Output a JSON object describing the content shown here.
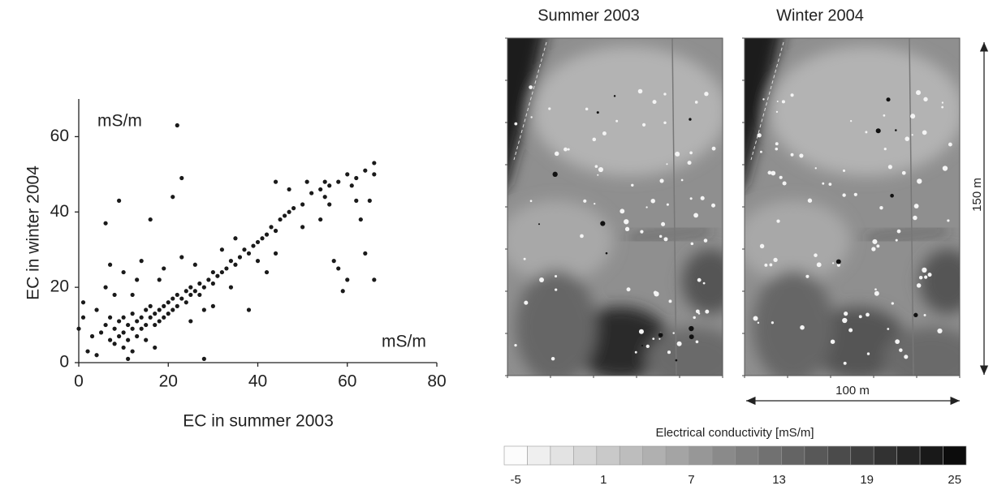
{
  "chart_data": [
    {
      "type": "scatter",
      "x_label": "EC in summer 2003",
      "y_label": "EC in winter 2004",
      "x_unit": "mS/m",
      "y_unit": "mS/m",
      "color": "#1a1a1a",
      "xlim": [
        0,
        80
      ],
      "xticks": [
        0,
        20,
        40,
        60,
        80
      ],
      "ylim": [
        0,
        70
      ],
      "yticks": [
        0,
        20,
        40,
        60
      ],
      "x": [
        5,
        6,
        7,
        7,
        8,
        8,
        9,
        9,
        10,
        10,
        10,
        11,
        11,
        12,
        12,
        12,
        13,
        13,
        14,
        14,
        15,
        15,
        15,
        16,
        16,
        17,
        17,
        18,
        18,
        19,
        19,
        20,
        20,
        21,
        21,
        22,
        22,
        23,
        24,
        24,
        25,
        25,
        26,
        27,
        27,
        28,
        29,
        30,
        30,
        31,
        32,
        33,
        34,
        35,
        36,
        37,
        38,
        39,
        40,
        41,
        42,
        43,
        44,
        45,
        46,
        47,
        48,
        50,
        52,
        54,
        55,
        56,
        58,
        60,
        62,
        64,
        66,
        66,
        1,
        0,
        2,
        1,
        3,
        4,
        4,
        6,
        6,
        7,
        8,
        9,
        10,
        11,
        12,
        13,
        14,
        16,
        17,
        18,
        19,
        21,
        22,
        23,
        23,
        25,
        26,
        28,
        28,
        30,
        32,
        34,
        35,
        38,
        40,
        42,
        44,
        44,
        47,
        50,
        51,
        54,
        55,
        56,
        57,
        58,
        59,
        60,
        61,
        62,
        63,
        64,
        65,
        66
      ],
      "y": [
        8,
        10,
        6,
        12,
        9,
        5,
        11,
        7,
        8,
        12,
        4,
        10,
        6,
        9,
        13,
        3,
        11,
        7,
        12,
        9,
        10,
        14,
        6,
        12,
        15,
        13,
        10,
        14,
        11,
        15,
        12,
        16,
        13,
        17,
        14,
        18,
        15,
        17,
        19,
        16,
        18,
        20,
        19,
        21,
        18,
        20,
        22,
        21,
        24,
        23,
        24,
        25,
        27,
        26,
        28,
        30,
        29,
        31,
        32,
        33,
        34,
        36,
        35,
        38,
        39,
        40,
        41,
        42,
        45,
        46,
        44,
        47,
        48,
        50,
        49,
        51,
        53,
        50,
        12,
        9,
        3,
        16,
        7,
        14,
        2,
        20,
        37,
        26,
        18,
        43,
        24,
        1,
        18,
        22,
        27,
        38,
        4,
        22,
        25,
        44,
        63,
        49,
        28,
        11,
        26,
        1,
        14,
        15,
        30,
        20,
        33,
        14,
        27,
        24,
        29,
        48,
        46,
        36,
        48,
        38,
        48,
        42,
        27,
        25,
        19,
        22,
        47,
        43,
        38,
        29,
        43,
        22
      ]
    },
    {
      "type": "colorbar",
      "title": "Electrical conductivity [mS/m]",
      "lim": [
        -5,
        25
      ],
      "ticks": [
        -5,
        1,
        7,
        13,
        19,
        25
      ],
      "steps": 20
    }
  ],
  "maps": {
    "panels": [
      "Summer 2003",
      "Winter 2004"
    ],
    "height_label": "150 m",
    "width_label": "100 m"
  }
}
